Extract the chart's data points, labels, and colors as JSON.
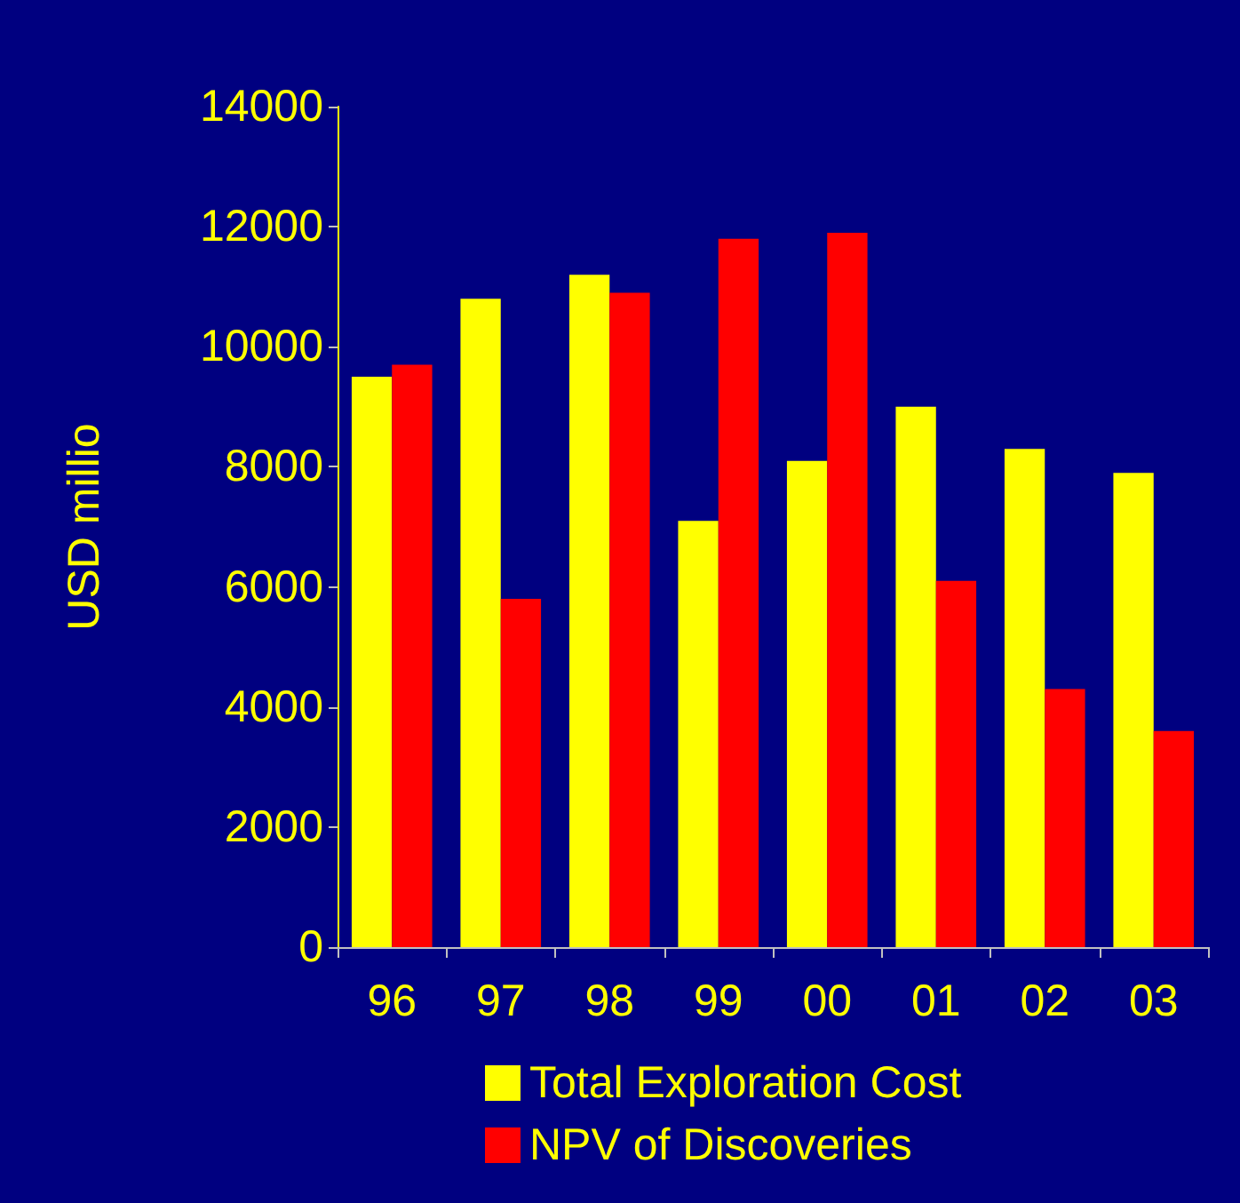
{
  "chart_data": {
    "type": "bar",
    "ylabel": "USD millio",
    "categories": [
      "96",
      "97",
      "98",
      "99",
      "00",
      "01",
      "02",
      "03"
    ],
    "series": [
      {
        "name": "Total Exploration Cost",
        "color": "#ffff00",
        "values": [
          9500,
          10800,
          11200,
          7100,
          8100,
          9000,
          8300,
          7900
        ]
      },
      {
        "name": "NPV of Discoveries",
        "color": "#ff0000",
        "values": [
          9700,
          5800,
          10900,
          11800,
          11900,
          6100,
          4300,
          3600
        ]
      }
    ],
    "ylim": [
      0,
      14000
    ],
    "yticks": [
      0,
      2000,
      4000,
      6000,
      8000,
      10000,
      12000,
      14000
    ],
    "grid": false,
    "legend": "bottom"
  }
}
